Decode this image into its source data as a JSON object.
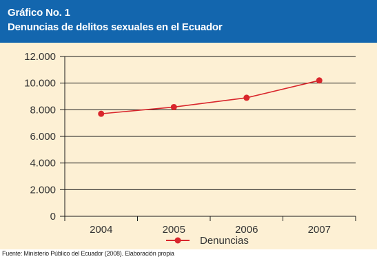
{
  "header": {
    "line1": "Gráfico No. 1",
    "line2": "Denuncias de delitos sexuales en el Ecuador"
  },
  "source": "Fuente: Ministerio Público del Ecuador (2008). Elaboración propia",
  "colors": {
    "header_bg": "#1366ae",
    "panel_bg": "#fdf0d4",
    "series": "#d9262c"
  },
  "chart_data": {
    "type": "line",
    "title": "",
    "xlabel": "",
    "ylabel": "",
    "categories": [
      "2004",
      "2005",
      "2006",
      "2007"
    ],
    "series": [
      {
        "name": "Denuncias",
        "values": [
          7700,
          8200,
          8900,
          10200
        ]
      }
    ],
    "ylim": [
      0,
      12000
    ],
    "yticks": [
      0,
      2000,
      4000,
      6000,
      8000,
      10000,
      12000
    ],
    "ytick_labels": [
      "0",
      "2.000",
      "4.000",
      "6.000",
      "8.000",
      "10.000",
      "12.000"
    ],
    "grid": true,
    "legend_position": "bottom"
  }
}
